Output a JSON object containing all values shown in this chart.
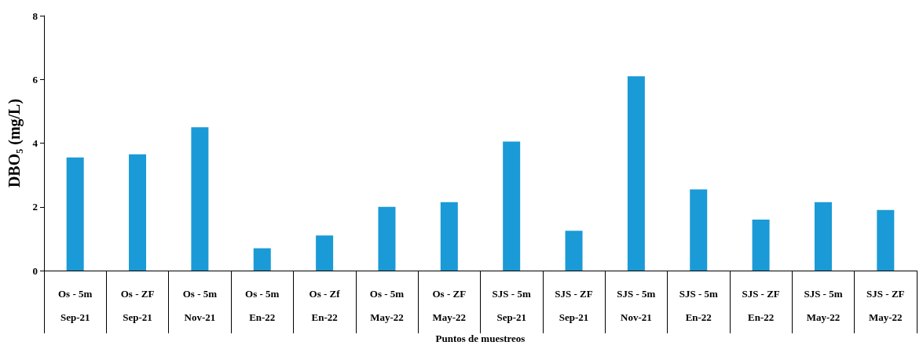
{
  "chart_data": {
    "type": "bar",
    "xlabel": "Puntos de muestreos",
    "ylabel": "DBO₅ (mg/L)",
    "categories": [
      "Os - 5m\nSep-21",
      "Os - ZF\nSep-21",
      "Os - 5m\nNov-21",
      "Os - 5m\nEn-22",
      "Os - Zf\nEn-22",
      "Os - 5m\nMay-22",
      "Os - ZF\nMay-22",
      "SJS - 5m\nSep-21",
      "SJS - ZF\nSep-21",
      "SJS - 5m\nNov-21",
      "SJS - 5m\nEn-22",
      "SJS - ZF\nEn-22",
      "SJS - 5m\nMay-22",
      "SJS - ZF\nMay-22"
    ],
    "values": [
      3.55,
      3.65,
      4.5,
      0.7,
      1.1,
      2.0,
      2.15,
      4.05,
      1.25,
      6.1,
      2.55,
      1.6,
      2.15,
      1.9
    ],
    "color": "#1a9ad6",
    "ylim": [
      0,
      8
    ],
    "yticks": [
      0,
      2,
      4,
      6,
      8
    ],
    "grid": false
  }
}
